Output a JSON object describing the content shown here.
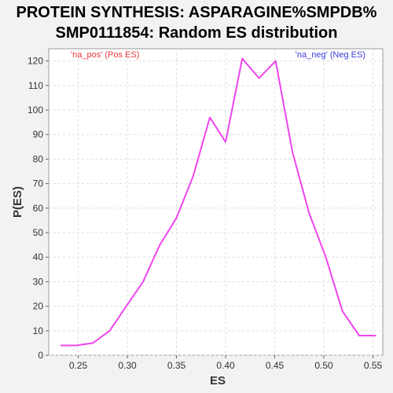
{
  "chart_data": {
    "type": "line",
    "title": "PROTEIN SYNTHESIS: ASPARAGINE%SMPDB%",
    "subtitle": "SMP0111854: Random ES distribution",
    "xlabel": "ES",
    "ylabel": "P(ES)",
    "xlim": [
      0.22,
      0.56
    ],
    "ylim": [
      0,
      125
    ],
    "xticks": [
      "0.25",
      "0.30",
      "0.35",
      "0.40",
      "0.45",
      "0.50",
      "0.55"
    ],
    "yticks": [
      "0",
      "10",
      "20",
      "30",
      "40",
      "50",
      "60",
      "70",
      "80",
      "90",
      "100",
      "110",
      "120"
    ],
    "grid": true,
    "legend": {
      "pos_label": "'na_pos' (Pos ES)",
      "neg_label": "'na_neg' (Neg ES)",
      "pos_color": "#e8383d",
      "neg_color": "#3b3bd9"
    },
    "series": [
      {
        "color": "#ee44ee",
        "x": [
          0.232,
          0.248,
          0.265,
          0.282,
          0.299,
          0.316,
          0.333,
          0.35,
          0.367,
          0.384,
          0.4,
          0.417,
          0.434,
          0.451,
          0.468,
          0.485,
          0.502,
          0.519,
          0.536,
          0.553
        ],
        "y": [
          4,
          4,
          5,
          10,
          20,
          30,
          45,
          56,
          73,
          97,
          87,
          121,
          113,
          120,
          83,
          58,
          40,
          18,
          8,
          8
        ]
      }
    ]
  }
}
